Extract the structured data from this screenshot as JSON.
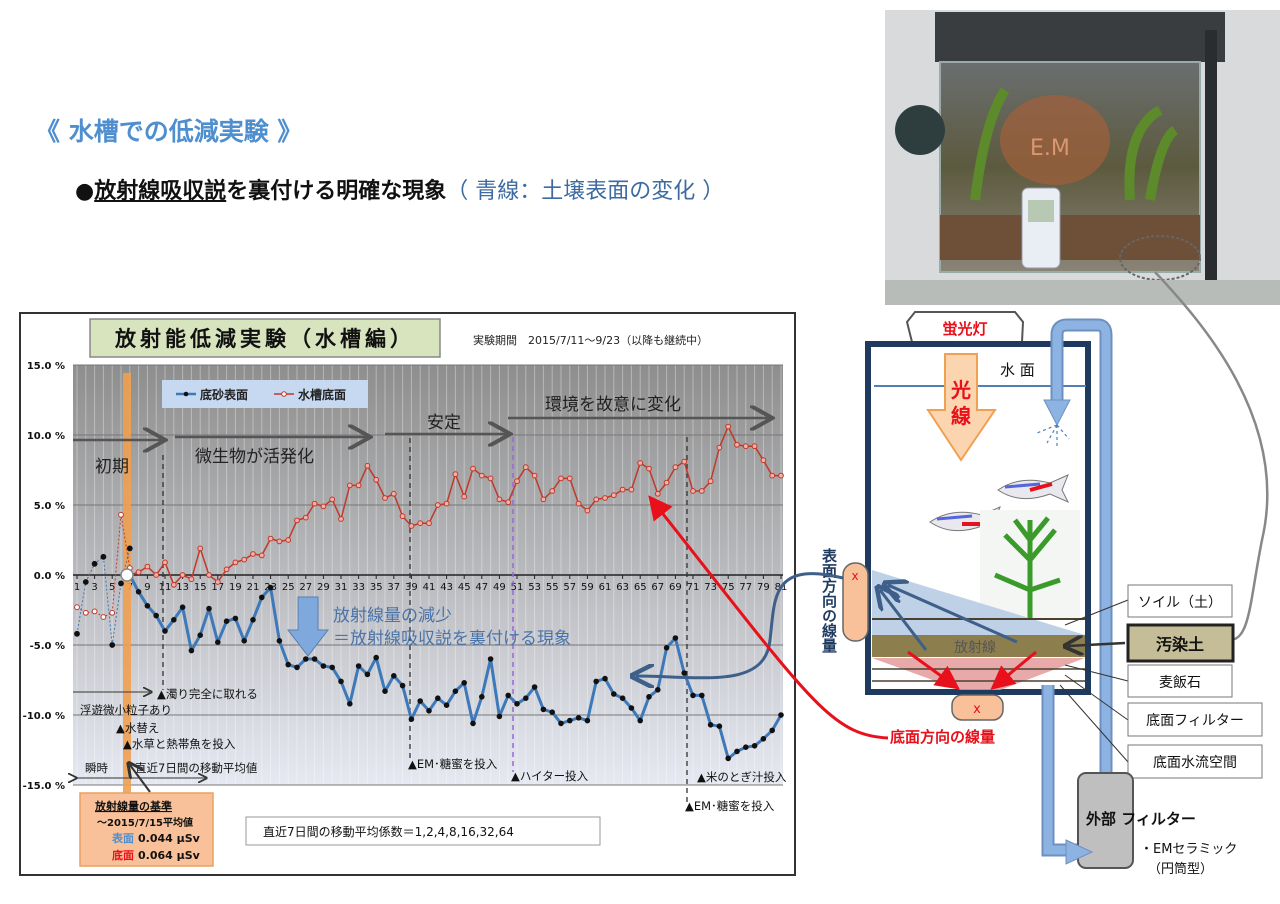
{
  "heading": "《 水槽での低減実験 》",
  "subheading": {
    "bullet": "●",
    "underlined": "放射線吸収説",
    "rest": "を裏付ける明確な現象",
    "note": "（ 青線：土壌表面の変化 ）"
  },
  "chart_title": "放射能低減実験（水槽編）",
  "period": "実験期間　2015/7/11～9/23（以降も継続中）",
  "chart_data": {
    "type": "line",
    "title": "放射能低減実験（水槽編）",
    "xlabel": "",
    "ylabel": "",
    "ylim": [
      -15,
      15
    ],
    "yticks": [
      "15.0 %",
      "10.0 %",
      "5.0 %",
      "0.0 %",
      "-5.0 %",
      "-10.0 %",
      "-15.0 %"
    ],
    "x_range": [
      1,
      81
    ],
    "xticks": [
      1,
      3,
      5,
      7,
      9,
      11,
      13,
      15,
      17,
      19,
      21,
      23,
      25,
      27,
      29,
      31,
      33,
      35,
      37,
      39,
      41,
      43,
      45,
      47,
      49,
      51,
      53,
      55,
      57,
      59,
      61,
      63,
      65,
      67,
      69,
      71,
      73,
      75,
      77,
      79,
      81
    ],
    "grid": true,
    "legend": "top-left",
    "series": [
      {
        "name": "底砂表面",
        "color": "#3d78b8",
        "initial_days_1_7": [
          -4.2,
          -0.5,
          0.8,
          1.3,
          -5.0,
          -0.6,
          1.9
        ],
        "values_from_day_7": [
          0,
          -1.2,
          -2.2,
          -2.9,
          -4.0,
          -3.2,
          -2.3,
          -5.4,
          -4.3,
          -2.4,
          -4.8,
          -3.3,
          -3.1,
          -4.7,
          -3.2,
          -1.6,
          -0.9,
          -4.7,
          -6.4,
          -6.6,
          -6.0,
          -6.0,
          -6.5,
          -6.6,
          -7.6,
          -9.2,
          -6.5,
          -7.1,
          -5.9,
          -8.3,
          -7.2,
          -7.9,
          -10.3,
          -9.0,
          -9.7,
          -8.8,
          -9.3,
          -8.3,
          -7.7,
          -10.6,
          -8.7,
          -6.0,
          -10.1,
          -8.6,
          -9.2,
          -8.8,
          -8.0,
          -9.6,
          -9.8,
          -10.6,
          -10.4,
          -10.2,
          -10.4,
          -7.6,
          -7.4,
          -8.5,
          -8.8,
          -9.5,
          -10.4,
          -8.7,
          -8.2,
          -5.2,
          -4.5,
          -7.0,
          -8.6,
          -8.6,
          -10.7,
          -10.8,
          -13.1,
          -12.6,
          -12.3,
          -12.2,
          -11.7,
          -11.1,
          -10.0
        ]
      },
      {
        "name": "水槽底面",
        "color": "#c0392b",
        "initial_days_1_7": [
          -2.3,
          -2.7,
          -2.6,
          -3.0,
          -2.7,
          4.3,
          0.5
        ],
        "values_from_day_7": [
          0,
          0.2,
          0.6,
          0,
          0.9,
          -0.7,
          0,
          -0.3,
          1.9,
          0,
          -0.5,
          0.4,
          0.9,
          1.1,
          1.5,
          1.4,
          2.6,
          2.4,
          2.5,
          3.9,
          4.1,
          5.1,
          4.9,
          5.4,
          4.0,
          6.4,
          6.4,
          7.8,
          6.8,
          5.5,
          5.8,
          4.2,
          3.5,
          3.7,
          3.7,
          5.0,
          5.1,
          7.2,
          5.6,
          7.6,
          7.1,
          6.9,
          5.4,
          5.2,
          6.7,
          7.7,
          7.1,
          5.4,
          6.0,
          6.9,
          6.9,
          5.1,
          4.6,
          5.4,
          5.5,
          5.7,
          6.1,
          6.1,
          8.0,
          7.6,
          5.8,
          6.6,
          7.7,
          8.1,
          6.0,
          6.0,
          6.7,
          9.1,
          10.6,
          9.3,
          9.2,
          9.2,
          8.2,
          7.1,
          7.1
        ]
      }
    ],
    "phases": [
      "初期",
      "微生物が活発化",
      "安定",
      "環境を故意に変化"
    ],
    "annotations": {
      "clear": "▲濁り完全に取れる",
      "particles": "浮遊微小粒子あり",
      "water_change": "▲水替え",
      "plants_fish": "▲水草と熱帯魚を投入",
      "instant": "瞬時",
      "moving_avg": "直近7日間の移動平均値",
      "em1": "▲EM･糖蜜を投入",
      "hiter": "▲ハイター投入",
      "rice": "▲米のとぎ汁投入",
      "em2": "▲EM･糖蜜を投入",
      "decrease1": "放射線量の減少",
      "decrease2": "＝放射線吸収説を裏付ける現象"
    }
  },
  "baseline_box": {
    "title": "放射線量の基準",
    "date": "～2015/7/15平均値",
    "surface_label": "表面",
    "surface_value": "0.044 µSv",
    "bottom_label": "底面",
    "bottom_value": "0.064 µSv"
  },
  "coef_note": "直近7日間の移動平均係数＝1,2,4,8,16,32,64",
  "diagram": {
    "lamp": "蛍光灯",
    "water_surface": "水 面",
    "light_1": "光",
    "light_2": "線",
    "radiation": "放射線",
    "surface_dose": "表面方向の線量",
    "bottom_dose": "底面方向の線量",
    "x_mark": "x",
    "labels": {
      "soil": "ソイル（土）",
      "contaminated": "汚染土",
      "stone": "麦飯石",
      "bottom_filter": "底面フィルター",
      "flow_space": "底面水流空間"
    },
    "external_filter": "外部 フィルター",
    "em_ceramic": "・EMセラミック",
    "cylinder": "（円筒型）"
  },
  "photo": {
    "tank_logo": "E.M"
  },
  "colors": {
    "heading": "#4f8fcf",
    "surface_line": "#3d78b8",
    "bottom_line": "#c0392b",
    "baseline_bar": "#f0a050",
    "title_box": "#d7e4bd",
    "contaminated_soil": "#c4bd97"
  }
}
